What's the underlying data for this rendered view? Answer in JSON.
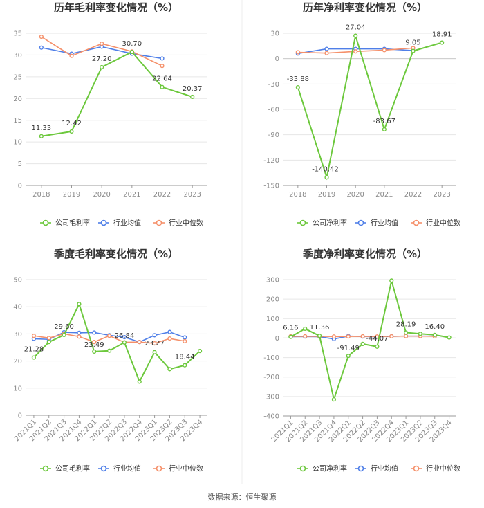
{
  "source": "数据来源：恒生聚源",
  "legend": {
    "company_gross": "公司毛利率",
    "company_net": "公司净利率",
    "industry_avg": "行业均值",
    "industry_median": "行业中位数"
  },
  "colors": {
    "company": "#6cc83c",
    "industry_avg": "#4f7fe8",
    "industry_median": "#f5906a",
    "grid": "#e6e6e6",
    "axis": "#999999"
  },
  "chart_data": [
    {
      "type": "line",
      "title": "历年毛利率变化情况（%）",
      "categories": [
        "2018",
        "2019",
        "2020",
        "2021",
        "2022",
        "2023"
      ],
      "ylim": [
        0,
        35
      ],
      "yticks": [
        0,
        5,
        10,
        15,
        20,
        25,
        30,
        35
      ],
      "series": [
        {
          "name": "公司毛利率",
          "key": "company",
          "values": [
            11.33,
            12.42,
            27.2,
            30.7,
            22.64,
            20.37
          ]
        },
        {
          "name": "行业均值",
          "key": "industry_avg",
          "values": [
            31.7,
            30.3,
            31.9,
            30.3,
            29.2,
            null
          ]
        },
        {
          "name": "行业中位数",
          "key": "industry_median",
          "values": [
            34.2,
            29.8,
            32.6,
            30.8,
            27.5,
            null
          ]
        }
      ],
      "data_labels": [
        "11.33",
        "12.42",
        "27.20",
        "30.70",
        "22.64",
        "20.37"
      ]
    },
    {
      "type": "line",
      "title": "历年净利率变化情况（%）",
      "categories": [
        "2018",
        "2019",
        "2020",
        "2021",
        "2022",
        "2023"
      ],
      "ylim": [
        -150,
        30
      ],
      "yticks": [
        -150,
        -120,
        -90,
        -60,
        -30,
        0,
        30
      ],
      "series": [
        {
          "name": "公司净利率",
          "key": "company",
          "values": [
            -33.88,
            -140.42,
            27.04,
            -83.67,
            9.05,
            18.91
          ]
        },
        {
          "name": "行业均值",
          "key": "industry_avg",
          "values": [
            6.0,
            11.5,
            11.5,
            11.5,
            9.5,
            null
          ]
        },
        {
          "name": "行业中位数",
          "key": "industry_median",
          "values": [
            7.5,
            6.5,
            8.5,
            10.0,
            12.5,
            null
          ]
        }
      ],
      "data_labels": [
        "-33.88",
        "-140.42",
        "27.04",
        "-83.67",
        "9.05",
        "18.91"
      ]
    },
    {
      "type": "line",
      "title": "季度毛利率变化情况（%）",
      "categories": [
        "2021Q1",
        "2021Q2",
        "2021Q3",
        "2021Q4",
        "2022Q1",
        "2022Q2",
        "2022Q3",
        "2022Q4",
        "2023Q1",
        "2023Q2",
        "2023Q3",
        "2023Q4"
      ],
      "ylim": [
        0,
        50
      ],
      "yticks": [
        0,
        10,
        20,
        30,
        40,
        50
      ],
      "series": [
        {
          "name": "公司毛利率",
          "key": "company",
          "values": [
            21.28,
            27.0,
            29.6,
            41.0,
            23.49,
            23.8,
            26.84,
            12.4,
            23.27,
            17.0,
            18.44,
            23.7
          ]
        },
        {
          "name": "行业均值",
          "key": "industry_avg",
          "values": [
            28.2,
            28.0,
            30.6,
            30.4,
            30.5,
            29.5,
            28.8,
            27.0,
            29.5,
            30.7,
            28.7,
            null
          ]
        },
        {
          "name": "行业中位数",
          "key": "industry_median",
          "values": [
            29.3,
            28.5,
            30.0,
            29.0,
            27.0,
            29.3,
            26.9,
            27.0,
            26.5,
            28.3,
            27.3,
            null
          ]
        }
      ],
      "data_labels": [
        {
          "i": 0,
          "text": "21.28"
        },
        {
          "i": 2,
          "text": "29.60"
        },
        {
          "i": 4,
          "text": "23.49"
        },
        {
          "i": 6,
          "text": "26.84"
        },
        {
          "i": 8,
          "text": "23.27"
        },
        {
          "i": 10,
          "text": "18.44"
        }
      ]
    },
    {
      "type": "line",
      "title": "季度净利率变化情况（%）",
      "categories": [
        "2021Q1",
        "2021Q2",
        "2021Q3",
        "2021Q4",
        "2022Q1",
        "2022Q2",
        "2022Q3",
        "2022Q4",
        "2023Q1",
        "2023Q2",
        "2023Q3",
        "2023Q4"
      ],
      "ylim": [
        -400,
        300
      ],
      "yticks": [
        -400,
        -300,
        -200,
        -100,
        0,
        100,
        200,
        300
      ],
      "series": [
        {
          "name": "公司净利率",
          "key": "company",
          "values": [
            6.16,
            48.0,
            11.36,
            -315.0,
            -91.49,
            -30.0,
            -44.07,
            295.0,
            28.19,
            22.0,
            16.4,
            3.0
          ]
        },
        {
          "name": "行业均值",
          "key": "industry_avg",
          "values": [
            7.0,
            8.0,
            7.0,
            -5.0,
            10.0,
            8.0,
            7.0,
            9.0,
            10.0,
            10.0,
            10.0,
            null
          ]
        },
        {
          "name": "行业中位数",
          "key": "industry_median",
          "values": [
            9.0,
            9.0,
            9.0,
            8.0,
            8.0,
            9.0,
            8.0,
            9.0,
            10.0,
            10.0,
            9.0,
            null
          ]
        }
      ],
      "data_labels": [
        {
          "i": 0,
          "text": "6.16"
        },
        {
          "i": 2,
          "text": "11.36"
        },
        {
          "i": 4,
          "text": "-91.49"
        },
        {
          "i": 6,
          "text": "-44.07"
        },
        {
          "i": 8,
          "text": "28.19"
        },
        {
          "i": 10,
          "text": "16.40"
        }
      ]
    }
  ]
}
